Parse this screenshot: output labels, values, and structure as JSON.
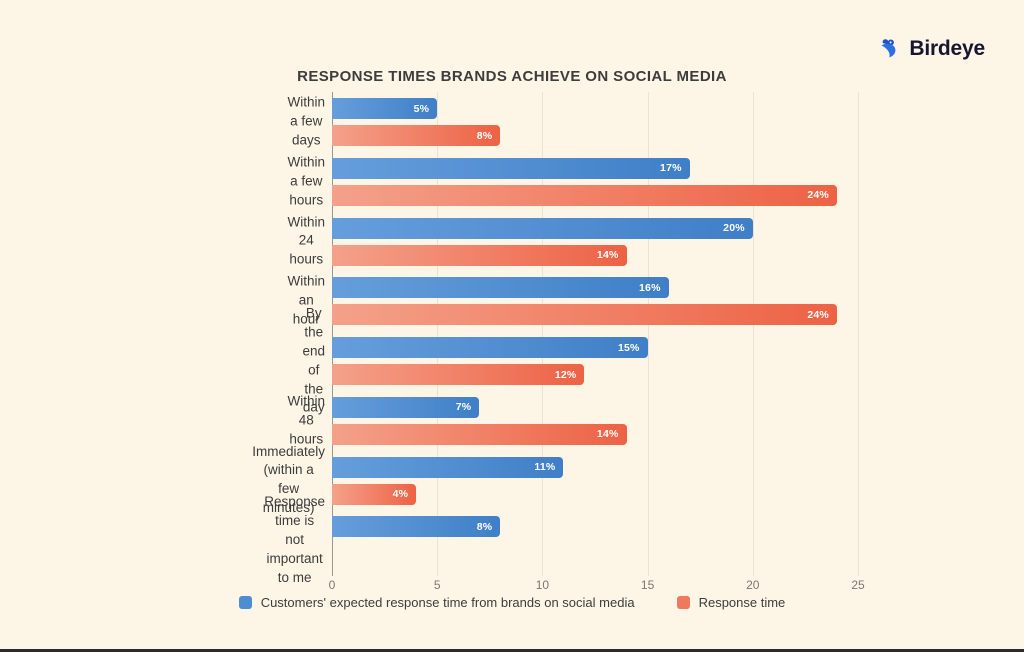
{
  "page": {
    "background": "#FDF6E7"
  },
  "logo": {
    "text": "Birdeye",
    "icon": "birdeye-bird-icon",
    "icon_color": "#2E6FE3",
    "icon_color_dark": "#1B54C4",
    "text_color": "#16162E"
  },
  "chart_data": {
    "type": "bar",
    "orientation": "horizontal",
    "title": "RESPONSE TIMES BRANDS ACHIEVE ON SOCIAL MEDIA",
    "categories": [
      "Within a few days",
      "Within a few hours",
      "Within 24 hours",
      "Within an hour",
      "By the end of the day",
      "Within 48 hours",
      "Immediately\n(within a few minutes)",
      "Response time is not\nimportant to me"
    ],
    "series": [
      {
        "name": "Customers' expected response time from brands on social media",
        "values": [
          5,
          17,
          20,
          16,
          15,
          7,
          11,
          8
        ],
        "color_start": "#669EDC",
        "color_end": "#3F7FC7",
        "swatch_color": "#4D8DD3"
      },
      {
        "name": "Response time",
        "values": [
          8,
          24,
          14,
          24,
          12,
          14,
          4,
          null
        ],
        "color_start": "#F4A18A",
        "color_end": "#ED6245",
        "swatch_color": "#F0785C"
      }
    ],
    "value_suffix": "%",
    "xlim": [
      0,
      25
    ],
    "xticks": [
      0,
      5,
      10,
      15,
      20,
      25
    ],
    "grid": true,
    "legend_position": "bottom"
  }
}
